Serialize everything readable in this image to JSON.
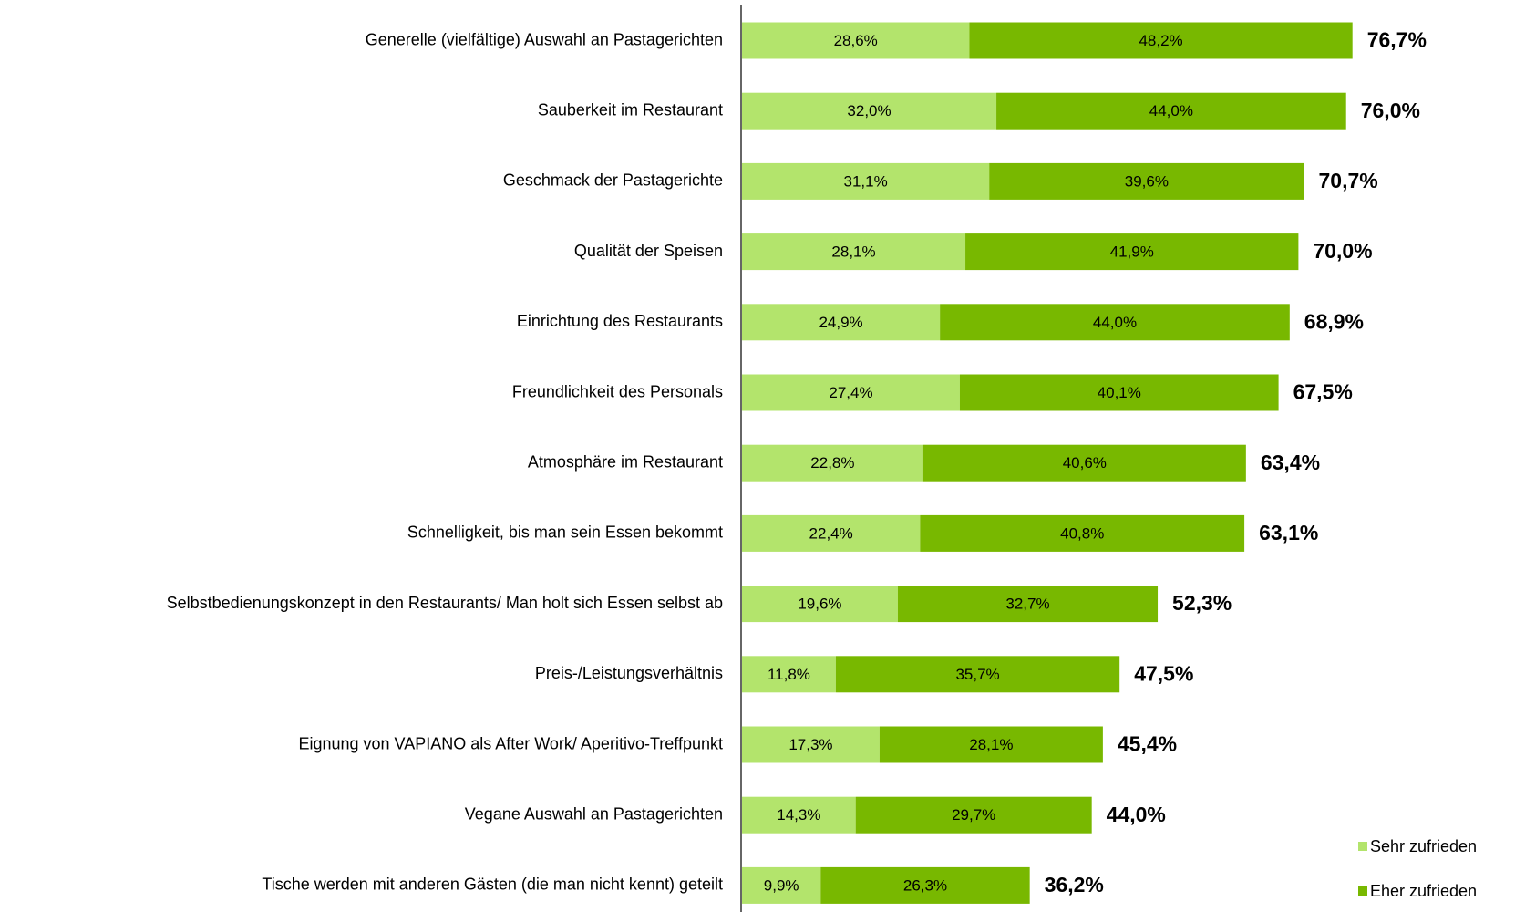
{
  "chart_data": {
    "type": "stacked-bar-horizontal",
    "categories": [
      "Generelle (vielfältige) Auswahl an Pastagerichten",
      "Sauberkeit im Restaurant",
      "Geschmack der Pastagerichte",
      "Qualität der Speisen",
      "Einrichtung des Restaurants",
      "Freundlichkeit des Personals",
      "Atmosphäre im Restaurant",
      "Schnelligkeit, bis man sein Essen bekommt",
      "Selbstbedienungskonzept in den Restaurants/ Man holt sich Essen selbst ab",
      "Preis-/Leistungsverhältnis",
      "Eignung von VAPIANO als After Work/ Aperitivo-Treffpunkt",
      "Vegane Auswahl an Pastagerichten",
      "Tische werden mit anderen Gästen (die man nicht kennt) geteilt"
    ],
    "series": [
      {
        "name": "Sehr zufrieden",
        "color": "#b3e46c",
        "values": [
          28.6,
          32.0,
          31.1,
          28.1,
          24.9,
          27.4,
          22.8,
          22.4,
          19.6,
          11.8,
          17.3,
          14.3,
          9.9
        ],
        "value_labels": [
          "28,6%",
          "32,0%",
          "31,1%",
          "28,1%",
          "24,9%",
          "27,4%",
          "22,8%",
          "22,4%",
          "19,6%",
          "11,8%",
          "17,3%",
          "14,3%",
          "9,9%"
        ]
      },
      {
        "name": "Eher zufrieden",
        "color": "#78b800",
        "values": [
          48.2,
          44.0,
          39.6,
          41.9,
          44.0,
          40.1,
          40.6,
          40.8,
          32.7,
          35.7,
          28.1,
          29.7,
          26.3
        ],
        "value_labels": [
          "48,2%",
          "44,0%",
          "39,6%",
          "41,9%",
          "44,0%",
          "40,1%",
          "40,6%",
          "40,8%",
          "32,7%",
          "35,7%",
          "28,1%",
          "29,7%",
          "26,3%"
        ]
      }
    ],
    "totals": [
      76.7,
      76.0,
      70.7,
      70.0,
      68.9,
      67.5,
      63.4,
      63.1,
      52.3,
      47.5,
      45.4,
      44.0,
      36.2
    ],
    "total_labels": [
      "76,7%",
      "76,0%",
      "70,7%",
      "70,0%",
      "68,9%",
      "67,5%",
      "63,4%",
      "63,1%",
      "52,3%",
      "47,5%",
      "45,4%",
      "44,0%",
      "36,2%"
    ],
    "legend": "bottom-right"
  }
}
